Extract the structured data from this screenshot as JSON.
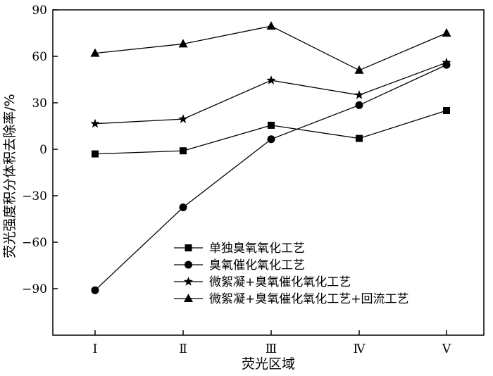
{
  "chart_data": {
    "type": "line",
    "title": "",
    "xlabel": "荧光区域",
    "ylabel": "荧光强度积分体积去除率/%",
    "categories": [
      "Ⅰ",
      "Ⅱ",
      "Ⅲ",
      "Ⅳ",
      "Ⅴ"
    ],
    "ylim": [
      -120,
      90
    ],
    "yticks": [
      90,
      60,
      30,
      0,
      -30,
      -60,
      -90
    ],
    "ytick_labels": [
      "90",
      "60",
      "30",
      "0",
      "−30",
      "−60",
      "−90"
    ],
    "grid": false,
    "legend_position": "lower-center",
    "series": [
      {
        "name": "单独臭氧氧化工艺",
        "marker": "square",
        "values": [
          -3,
          -1,
          15.5,
          7,
          25
        ]
      },
      {
        "name": "臭氧催化氧化工艺",
        "marker": "circle",
        "values": [
          -91,
          -37.5,
          6.5,
          28.5,
          54.5
        ]
      },
      {
        "name": "微絮凝+臭氧催化氧化工艺",
        "marker": "star",
        "values": [
          16.5,
          19.5,
          44.5,
          35,
          56
        ]
      },
      {
        "name": "微絮凝+臭氧催化氧化工艺+回流工艺",
        "marker": "triangle",
        "values": [
          62,
          68,
          79.5,
          51,
          75
        ]
      }
    ]
  }
}
